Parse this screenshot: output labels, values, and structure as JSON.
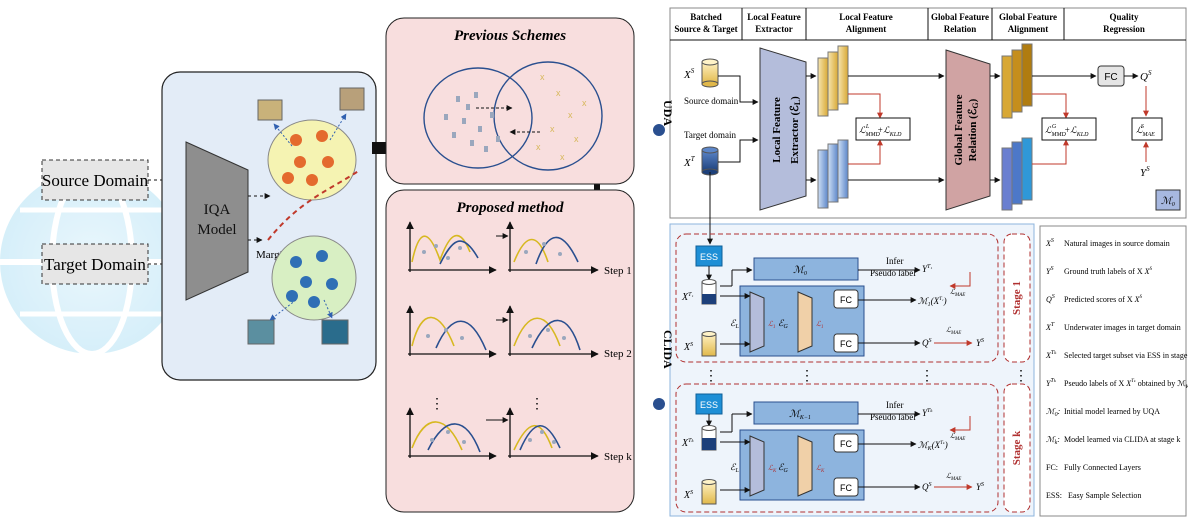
{
  "left": {
    "source_domain": "Source Domain",
    "target_domain": "Target Domain",
    "iqa_model": "IQA\nModel",
    "margin": "Margin",
    "previous_schemes": "Previous Schemes",
    "proposed_method": "Proposed method",
    "steps": [
      "Step 1",
      "Step 2",
      "Step k"
    ]
  },
  "uda": {
    "label": "UDA",
    "headers": [
      "Batched\nSource & Target",
      "Local Feature\nExtractor",
      "Local Feature\nAlignment",
      "Global Feature\nRelation",
      "Global Feature\nAlignment",
      "Quality\nRegression"
    ],
    "xs": "X",
    "xs_sup": "S",
    "xt": "X",
    "xt_sup": "T",
    "source_domain": "Source domain",
    "target_domain": "Target domain",
    "local_extractor": "Local Feature\nExtractor (ℰ",
    "local_extractor_sub": "L",
    "global_relation": "Global Feature\nRelation (ℰ",
    "global_relation_sub": "G",
    "loss_local": "ℒ",
    "fc": "FC",
    "q": "Q",
    "q_sup": "S",
    "y": "Y",
    "y_sup": "S",
    "loss_mae": "ℒ",
    "m0": "ℳ",
    "m0_sub": "0"
  },
  "clida": {
    "label": "CLIDA",
    "ess": "ESS",
    "infer": "Infer",
    "pseudo": "Pseudo label",
    "stage1": "Stage 1",
    "stagek": "Stage k",
    "fc": "FC",
    "m0": "ℳ",
    "mk1": "ℳ",
    "dots": "⋮"
  },
  "legend": [
    {
      "sym": "X",
      "sup": "S",
      "text": "Natural images in source domain"
    },
    {
      "sym": "Y",
      "sup": "S",
      "text": "Ground truth labels of X"
    },
    {
      "sym": "Q",
      "sup": "S",
      "text": "Predicted scores of X"
    },
    {
      "sym": "X",
      "sup": "T",
      "text": "Underwater images in target domain"
    },
    {
      "sym": "X",
      "sup": "Tₖ",
      "text": "Selected target subset via ESS in stage k"
    },
    {
      "sym": "Y",
      "sup": "Tₖ",
      "text": "Pseudo labels of X"
    },
    {
      "sym": "ℳ",
      "sup": "₀",
      "text": "Initial model learned by UQA"
    },
    {
      "sym": "ℳ",
      "sup": "ₖ",
      "text": "Model learned via CLIDA at stage k"
    },
    {
      "sym": "FC",
      "sup": "",
      "text": "Fully Connected Layers"
    },
    {
      "sym": "ESS",
      "sup": "",
      "text": "Easy Sample Selection"
    }
  ],
  "colors": {
    "left_panel_bg": "#e3ecf7",
    "right_panel_bg": "#f8dede",
    "stage_border": "#b03030",
    "blue_block": "#8db4de",
    "ess_block": "#1e8fd6"
  }
}
